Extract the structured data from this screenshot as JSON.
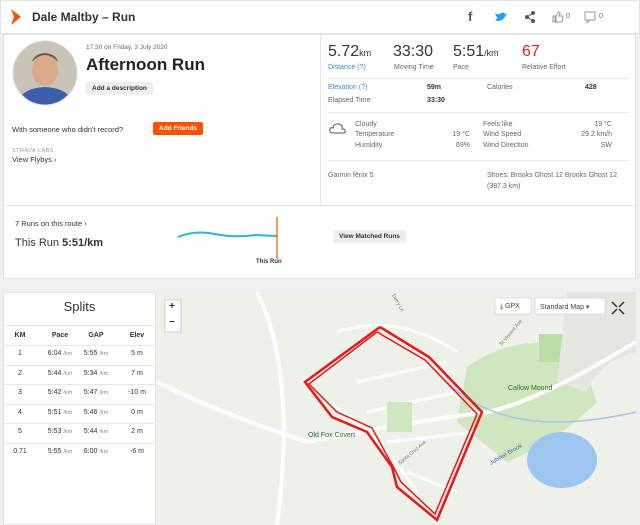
{
  "header": {
    "title": "Dale Maltby – Run",
    "likes": "0",
    "comments": "0"
  },
  "activity": {
    "date": "17:30 on Friday, 3 July 2020",
    "title": "Afternoon Run",
    "add_description": "Add a description",
    "with_someone": "With someone who didn't record?",
    "add_friends": "Add Friends",
    "labs": "STRAVA LABS",
    "flybys": "View Flybys"
  },
  "stats": {
    "distance": "5.72",
    "distance_unit": "km",
    "distance_label": "Distance (?)",
    "moving_time": "33:30",
    "moving_time_label": "Moving Time",
    "pace": "5:51",
    "pace_unit": "/km",
    "pace_label": "Pace",
    "effort": "67",
    "effort_label": "Relative Effort",
    "elevation_label": "Elevation (?)",
    "elevation": "59m",
    "calories_label": "Calories",
    "calories": "428",
    "elapsed_label": "Elapsed Time",
    "elapsed": "33:30"
  },
  "weather": {
    "condition": "Cloudy",
    "temperature_label": "Temperature",
    "temperature": "19 °C",
    "humidity_label": "Humidity",
    "humidity": "69%",
    "feels_label": "Feels like",
    "feels": "19 °C",
    "wind_speed_label": "Wind Speed",
    "wind_speed": "29.2 km/h",
    "wind_dir_label": "Wind Direction",
    "wind_dir": "SW"
  },
  "gear": {
    "device": "Garmin fēnix 5",
    "shoes": "Shoes: Brooks Ghost 12 Brooks Ghost 12",
    "shoes_distance": "(387.3 km)"
  },
  "route": {
    "runs": "7 Runs on this route",
    "this_run": "This Run",
    "this_pace": "5:51/km",
    "marker": "This Run",
    "matched": "View Matched Runs"
  },
  "splits": {
    "title": "Splits",
    "columns": [
      "KM",
      "Pace",
      "GAP",
      "Elev"
    ],
    "unit": "/km",
    "rows": [
      [
        "1",
        "6:04",
        "5:55",
        "5 m"
      ],
      [
        "2",
        "5:44",
        "5:34",
        "7 m"
      ],
      [
        "3",
        "5:42",
        "5:47",
        "-10 m"
      ],
      [
        "4",
        "5:51",
        "5:46",
        "0 m"
      ],
      [
        "5",
        "5:53",
        "5:44",
        "2 m"
      ],
      [
        "0.71",
        "5:55",
        "6:00",
        "-6 m"
      ]
    ]
  },
  "map": {
    "zoom_in": "+",
    "zoom_out": "−",
    "gpx": "GPX",
    "style": "Standard Map",
    "labels": [
      "Old Fox Covert",
      "Callow Mound",
      "Jubilee Brook",
      "Santa Cruz Ave",
      "Derry Ln",
      "St Vincent Ave"
    ]
  }
}
